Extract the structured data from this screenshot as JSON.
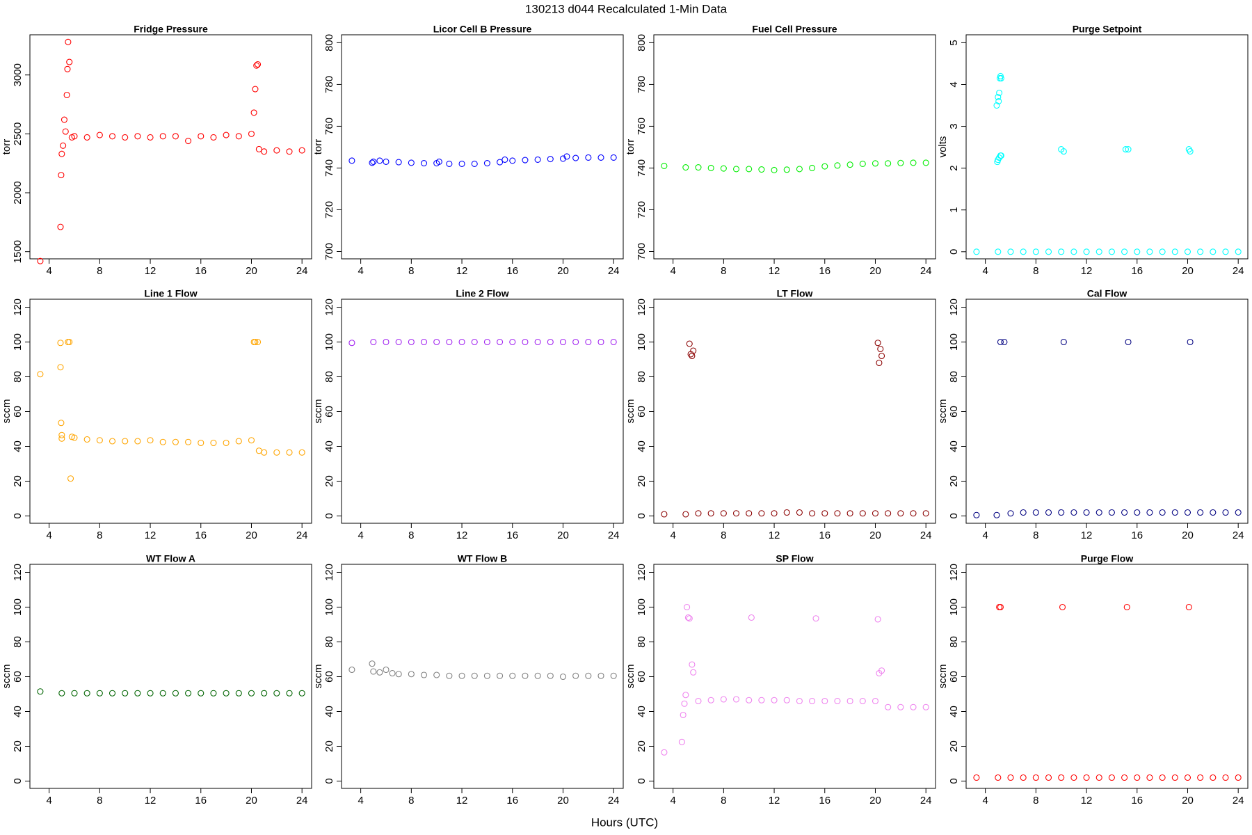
{
  "title": "130213   d044   Recalculated 1-Min Data",
  "x_label": "Hours (UTC)",
  "chart_data": [
    {
      "type": "scatter",
      "title": "Fridge Pressure",
      "y_label": "torr",
      "color": "#ff0000",
      "xlim": [
        2.48,
        24.76
      ],
      "xticks": [
        4,
        8,
        12,
        16,
        20,
        24
      ],
      "ylim": [
        1439,
        3341
      ],
      "yticks": [
        1500,
        2000,
        2500,
        3000
      ],
      "x": [
        3.3,
        4.9,
        4.95,
        5.0,
        5.1,
        5.2,
        5.3,
        5.4,
        5.45,
        5.5,
        5.6,
        5.8,
        6,
        7,
        8,
        9,
        10,
        11,
        12,
        13,
        14,
        15,
        16,
        17,
        18,
        19,
        20,
        20.2,
        20.3,
        20.4,
        20.5,
        20.6,
        21,
        22,
        23,
        24
      ],
      "values": [
        1420,
        1710,
        2150,
        2330,
        2400,
        2620,
        2520,
        2830,
        3050,
        3280,
        3110,
        2470,
        2480,
        2470,
        2490,
        2480,
        2470,
        2480,
        2470,
        2480,
        2480,
        2440,
        2480,
        2470,
        2490,
        2480,
        2500,
        2680,
        2880,
        3080,
        3090,
        2370,
        2350,
        2360,
        2350,
        2360
      ]
    },
    {
      "type": "scatter",
      "title": "Licor Cell B Pressure",
      "y_label": "torr",
      "color": "#0000ff",
      "xlim": [
        2.48,
        24.76
      ],
      "xticks": [
        4,
        8,
        12,
        16,
        20,
        24
      ],
      "ylim": [
        696.5,
        803.8
      ],
      "yticks": [
        700,
        720,
        740,
        760,
        780,
        800
      ],
      "x": [
        3.3,
        4.9,
        5,
        5.5,
        6,
        7,
        8,
        9,
        10,
        10.2,
        11,
        12,
        13,
        14,
        15,
        15.4,
        16,
        17,
        18,
        19,
        20,
        20.3,
        21,
        22,
        23,
        24
      ],
      "values": [
        743.5,
        742.5,
        743,
        743.5,
        743,
        742.8,
        742.5,
        742.3,
        742.3,
        743,
        742,
        742,
        742,
        742.3,
        742.8,
        744,
        743.5,
        743.8,
        744,
        744.3,
        744.5,
        745.5,
        744.8,
        745,
        745,
        745
      ]
    },
    {
      "type": "scatter",
      "title": "Fuel Cell Pressure",
      "y_label": "torr",
      "color": "#00ee00",
      "xlim": [
        2.48,
        24.76
      ],
      "xticks": [
        4,
        8,
        12,
        16,
        20,
        24
      ],
      "ylim": [
        696.5,
        803.8
      ],
      "yticks": [
        700,
        720,
        740,
        760,
        780,
        800
      ],
      "x": [
        3.3,
        5,
        6,
        7,
        8,
        9,
        10,
        11,
        12,
        13,
        14,
        15,
        16,
        17,
        18,
        19,
        20,
        21,
        22,
        23,
        24
      ],
      "values": [
        741,
        740.3,
        740.3,
        740,
        739.8,
        739.5,
        739.5,
        739.3,
        739,
        739.2,
        739.5,
        740,
        740.8,
        741.2,
        741.6,
        742,
        742.2,
        742.2,
        742.4,
        742.5,
        742.5
      ]
    },
    {
      "type": "scatter",
      "title": "Purge Setpoint",
      "y_label": "volts",
      "color": "#00ffff",
      "xlim": [
        2.48,
        24.76
      ],
      "xticks": [
        4,
        8,
        12,
        16,
        20,
        24
      ],
      "ylim": [
        -0.17,
        5.19
      ],
      "yticks": [
        0,
        1,
        2,
        3,
        4,
        5
      ],
      "x": [
        3.3,
        4.9,
        4.95,
        5.0,
        5.05,
        5.1,
        5.15,
        5.2,
        5.25,
        5.0,
        5.1,
        5.2,
        5.25,
        5,
        6,
        7,
        8,
        9,
        10,
        10.0,
        10.2,
        11,
        12,
        13,
        14,
        15,
        15.1,
        15.3,
        16,
        17,
        18,
        19,
        20,
        20.1,
        20.2,
        21,
        22,
        23,
        24
      ],
      "values": [
        0,
        3.5,
        2.15,
        3.7,
        3.6,
        3.8,
        4.15,
        4.2,
        4.15,
        2.2,
        2.25,
        2.3,
        2.3,
        0,
        0,
        0,
        0,
        0,
        0,
        2.45,
        2.4,
        0,
        0,
        0,
        0,
        0,
        2.45,
        2.45,
        0,
        0,
        0,
        0,
        0,
        2.45,
        2.4,
        0,
        0,
        0,
        0
      ]
    },
    {
      "type": "scatter",
      "title": "Line 1 Flow",
      "y_label": "sccm",
      "color": "#ffa500",
      "xlim": [
        2.48,
        24.76
      ],
      "xticks": [
        4,
        8,
        12,
        16,
        20,
        24
      ],
      "ylim": [
        -4.2,
        124.6
      ],
      "yticks": [
        0,
        20,
        40,
        60,
        80,
        100,
        120
      ],
      "x": [
        3.3,
        4.9,
        4.9,
        4.95,
        5.0,
        5.0,
        5.5,
        5.6,
        5.7,
        5.8,
        6,
        7,
        8,
        9,
        10,
        11,
        12,
        13,
        14,
        15,
        16,
        17,
        18,
        19,
        20,
        20.2,
        20.3,
        20.5,
        20.6,
        21,
        22,
        23,
        24
      ],
      "values": [
        81.5,
        99.5,
        85.5,
        53.5,
        46.5,
        44.5,
        100,
        100,
        21.5,
        45.5,
        45,
        44,
        43.5,
        43,
        43,
        43,
        43.5,
        42.5,
        42.5,
        42.5,
        42,
        42,
        42,
        43,
        43.5,
        100,
        100,
        100,
        37.5,
        36.5,
        36.5,
        36.5,
        36.5
      ]
    },
    {
      "type": "scatter",
      "title": "Line 2 Flow",
      "y_label": "sccm",
      "color": "#a020f0",
      "xlim": [
        2.48,
        24.76
      ],
      "xticks": [
        4,
        8,
        12,
        16,
        20,
        24
      ],
      "ylim": [
        -4.2,
        124.6
      ],
      "yticks": [
        0,
        20,
        40,
        60,
        80,
        100,
        120
      ],
      "x": [
        3.3,
        5,
        6,
        7,
        8,
        9,
        10,
        11,
        12,
        13,
        14,
        15,
        16,
        17,
        18,
        19,
        20,
        21,
        22,
        23,
        24
      ],
      "values": [
        99.5,
        100,
        100,
        100,
        100,
        100,
        100,
        100,
        100,
        100,
        100,
        100,
        100,
        100,
        100,
        100,
        100,
        100,
        100,
        100,
        100
      ]
    },
    {
      "type": "scatter",
      "title": "LT Flow",
      "y_label": "sccm",
      "color": "#8b0000",
      "xlim": [
        2.48,
        24.76
      ],
      "xticks": [
        4,
        8,
        12,
        16,
        20,
        24
      ],
      "ylim": [
        -4.2,
        124.6
      ],
      "yticks": [
        0,
        20,
        40,
        60,
        80,
        100,
        120
      ],
      "x": [
        3.3,
        5,
        5.3,
        5.4,
        5.5,
        5.6,
        6,
        7,
        8,
        9,
        10,
        11,
        12,
        13,
        14,
        15,
        16,
        17,
        18,
        19,
        20,
        20.2,
        20.3,
        20.4,
        20.5,
        21,
        22,
        23,
        24
      ],
      "values": [
        1,
        1,
        99,
        93,
        92,
        95,
        1.5,
        1.5,
        1.5,
        1.5,
        1.5,
        1.5,
        1.5,
        2,
        2,
        1.5,
        1.5,
        1.5,
        1.5,
        1.5,
        1.5,
        99.5,
        88,
        96,
        92,
        1.5,
        1.5,
        1.5,
        1.5
      ]
    },
    {
      "type": "scatter",
      "title": "Cal Flow",
      "y_label": "sccm",
      "color": "#000080",
      "xlim": [
        2.48,
        24.76
      ],
      "xticks": [
        4,
        8,
        12,
        16,
        20,
        24
      ],
      "ylim": [
        -4.2,
        124.6
      ],
      "yticks": [
        0,
        20,
        40,
        60,
        80,
        100,
        120
      ],
      "x": [
        3.3,
        4.9,
        5.2,
        5.5,
        6,
        7,
        8,
        9,
        10,
        10.2,
        11,
        12,
        13,
        14,
        15,
        15.3,
        16,
        17,
        18,
        19,
        20,
        20.2,
        21,
        22,
        23,
        24
      ],
      "values": [
        0.5,
        0.5,
        100,
        100,
        1.5,
        2,
        2,
        2,
        2,
        100,
        2,
        2,
        2,
        2,
        2,
        100,
        2,
        2,
        2,
        2,
        2,
        100,
        2,
        2,
        2,
        2
      ]
    },
    {
      "type": "scatter",
      "title": "WT Flow A",
      "y_label": "sccm",
      "color": "#006400",
      "xlim": [
        2.48,
        24.76
      ],
      "xticks": [
        4,
        8,
        12,
        16,
        20,
        24
      ],
      "ylim": [
        -4.2,
        124.6
      ],
      "yticks": [
        0,
        20,
        40,
        60,
        80,
        100,
        120
      ],
      "x": [
        3.3,
        5,
        6,
        7,
        8,
        9,
        10,
        11,
        12,
        13,
        14,
        15,
        16,
        17,
        18,
        19,
        20,
        21,
        22,
        23,
        24
      ],
      "values": [
        51.5,
        50.5,
        50.5,
        50.5,
        50.5,
        50.5,
        50.5,
        50.5,
        50.5,
        50.5,
        50.5,
        50.5,
        50.5,
        50.5,
        50.5,
        50.5,
        50.5,
        50.5,
        50.5,
        50.5,
        50.5
      ]
    },
    {
      "type": "scatter",
      "title": "WT Flow B",
      "y_label": "sccm",
      "color": "#7f7f7f",
      "xlim": [
        2.48,
        24.76
      ],
      "xticks": [
        4,
        8,
        12,
        16,
        20,
        24
      ],
      "ylim": [
        -4.2,
        124.6
      ],
      "yticks": [
        0,
        20,
        40,
        60,
        80,
        100,
        120
      ],
      "x": [
        3.3,
        4.9,
        5,
        5.5,
        6,
        6.5,
        7,
        8,
        9,
        10,
        11,
        12,
        13,
        14,
        15,
        16,
        17,
        18,
        19,
        20,
        21,
        22,
        23,
        24
      ],
      "values": [
        64,
        67.5,
        63,
        62.5,
        64,
        62,
        61.5,
        61.5,
        61,
        61,
        60.5,
        60.5,
        60.5,
        60.5,
        60.5,
        60.5,
        60.5,
        60.5,
        60.5,
        60,
        60.5,
        60.5,
        60.5,
        60.5
      ]
    },
    {
      "type": "scatter",
      "title": "SP Flow",
      "y_label": "sccm",
      "color": "#ee82ee",
      "xlim": [
        2.48,
        24.76
      ],
      "xticks": [
        4,
        8,
        12,
        16,
        20,
        24
      ],
      "ylim": [
        -4.2,
        124.6
      ],
      "yticks": [
        0,
        20,
        40,
        60,
        80,
        100,
        120
      ],
      "x": [
        3.3,
        4.7,
        4.8,
        4.9,
        5.0,
        5.1,
        5.2,
        5.3,
        5.5,
        5.6,
        6,
        7,
        8,
        9,
        10,
        10.2,
        11,
        12,
        13,
        14,
        15,
        15.3,
        16,
        17,
        18,
        19,
        20,
        20.2,
        20.3,
        20.5,
        21,
        22,
        23,
        24
      ],
      "values": [
        16.5,
        22.5,
        38,
        44.5,
        49.5,
        100,
        94,
        93.5,
        67,
        62.5,
        46,
        46.5,
        47,
        47,
        46.5,
        94,
        46.5,
        46.5,
        46.5,
        46,
        46,
        93.5,
        46,
        46,
        46,
        46,
        46,
        93,
        62,
        63.5,
        42.5,
        42.5,
        42.5,
        42.5
      ]
    },
    {
      "type": "scatter",
      "title": "Purge Flow",
      "y_label": "sccm",
      "color": "#ff0000",
      "xlim": [
        2.48,
        24.76
      ],
      "xticks": [
        4,
        8,
        12,
        16,
        20,
        24
      ],
      "ylim": [
        -4.2,
        124.6
      ],
      "yticks": [
        0,
        20,
        40,
        60,
        80,
        100,
        120
      ],
      "x": [
        3.3,
        5,
        5.1,
        5.2,
        6,
        7,
        8,
        9,
        10,
        10.1,
        11,
        12,
        13,
        14,
        15,
        15.2,
        16,
        17,
        18,
        19,
        20,
        20.1,
        21,
        22,
        23,
        24
      ],
      "values": [
        2,
        2,
        100,
        100,
        2,
        2,
        2,
        2,
        2,
        100,
        2,
        2,
        2,
        2,
        2,
        100,
        2,
        2,
        2,
        2,
        2,
        100,
        2,
        2,
        2,
        2
      ]
    }
  ]
}
